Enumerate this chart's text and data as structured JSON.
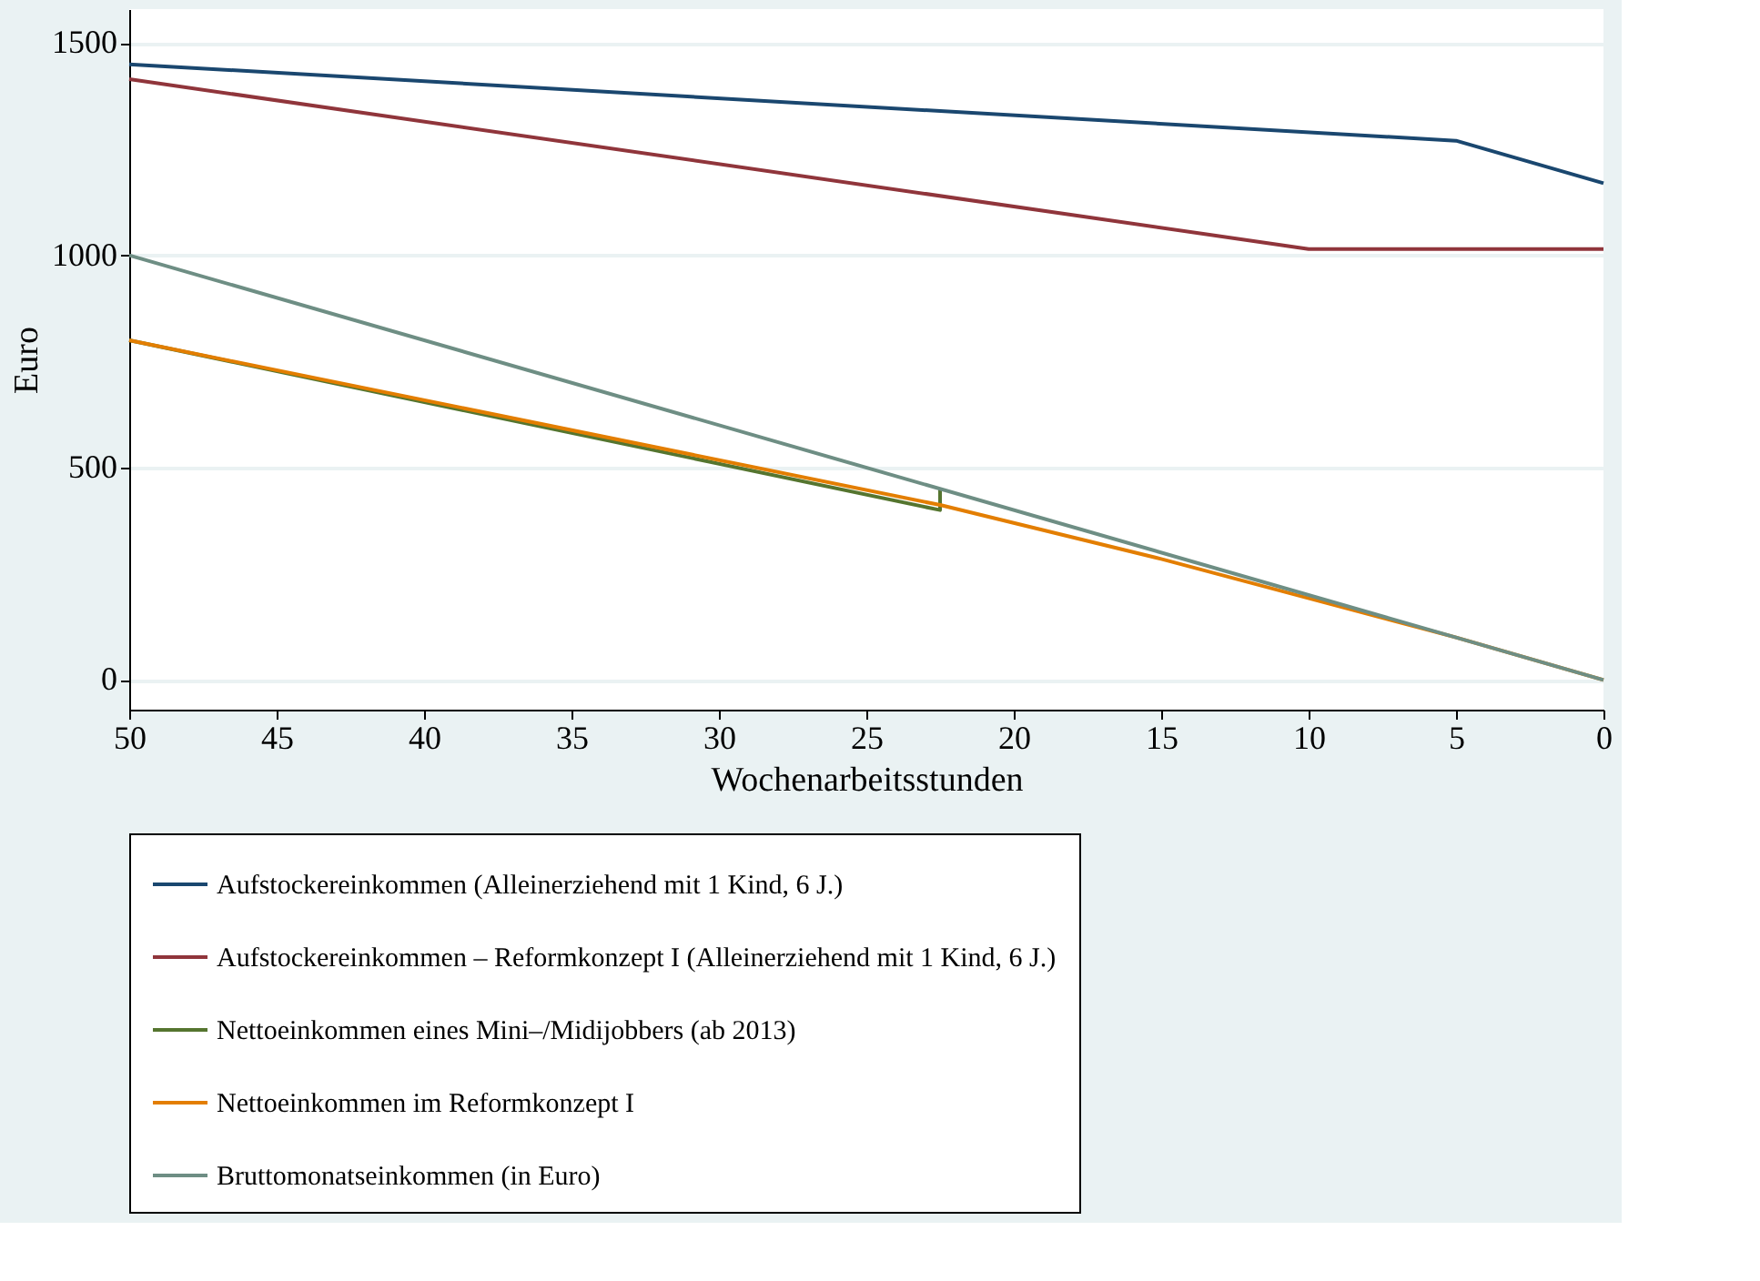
{
  "chart_data": {
    "type": "line",
    "xlabel": "Wochenarbeitsstunden",
    "ylabel": "Euro",
    "xlim": [
      50,
      0
    ],
    "xticks": [
      50,
      45,
      40,
      35,
      30,
      25,
      20,
      15,
      10,
      5,
      0
    ],
    "ylim": [
      -70,
      1580
    ],
    "yticks": [
      0,
      500,
      1000,
      1500
    ],
    "grid": "y",
    "legend": "bottom",
    "marker": "none",
    "line_style": "solid",
    "series": [
      {
        "name": "Aufstockereinkommen (Alleinerziehend mit 1 Kind, 6 J.)",
        "color": "#1a476f",
        "x": [
          50,
          5,
          0
        ],
        "values": [
          1450,
          1270,
          1170
        ]
      },
      {
        "name": "Aufstockereinkommen – Reformkonzept I (Alleinerziehend mit 1 Kind, 6 J.)",
        "color": "#90353b",
        "x": [
          50,
          10,
          0
        ],
        "values": [
          1415,
          1015,
          1015
        ]
      },
      {
        "name": "Nettoeinkommen eines Mini–/Midijobbers (ab 2013)",
        "color": "#55752f",
        "x": [
          50,
          22.5,
          22.5
        ],
        "values": [
          800,
          400,
          450
        ]
      },
      {
        "name": "Nettoeinkommen im Reformkonzept I",
        "color": "#e37e00",
        "x": [
          50,
          22.5,
          15,
          5,
          0
        ],
        "values": [
          800,
          412,
          285,
          100,
          0
        ]
      },
      {
        "name": "Bruttomonatseinkommen (in Euro)",
        "color": "#6e8e84",
        "x": [
          50,
          0
        ],
        "values": [
          1000,
          0
        ]
      }
    ]
  }
}
